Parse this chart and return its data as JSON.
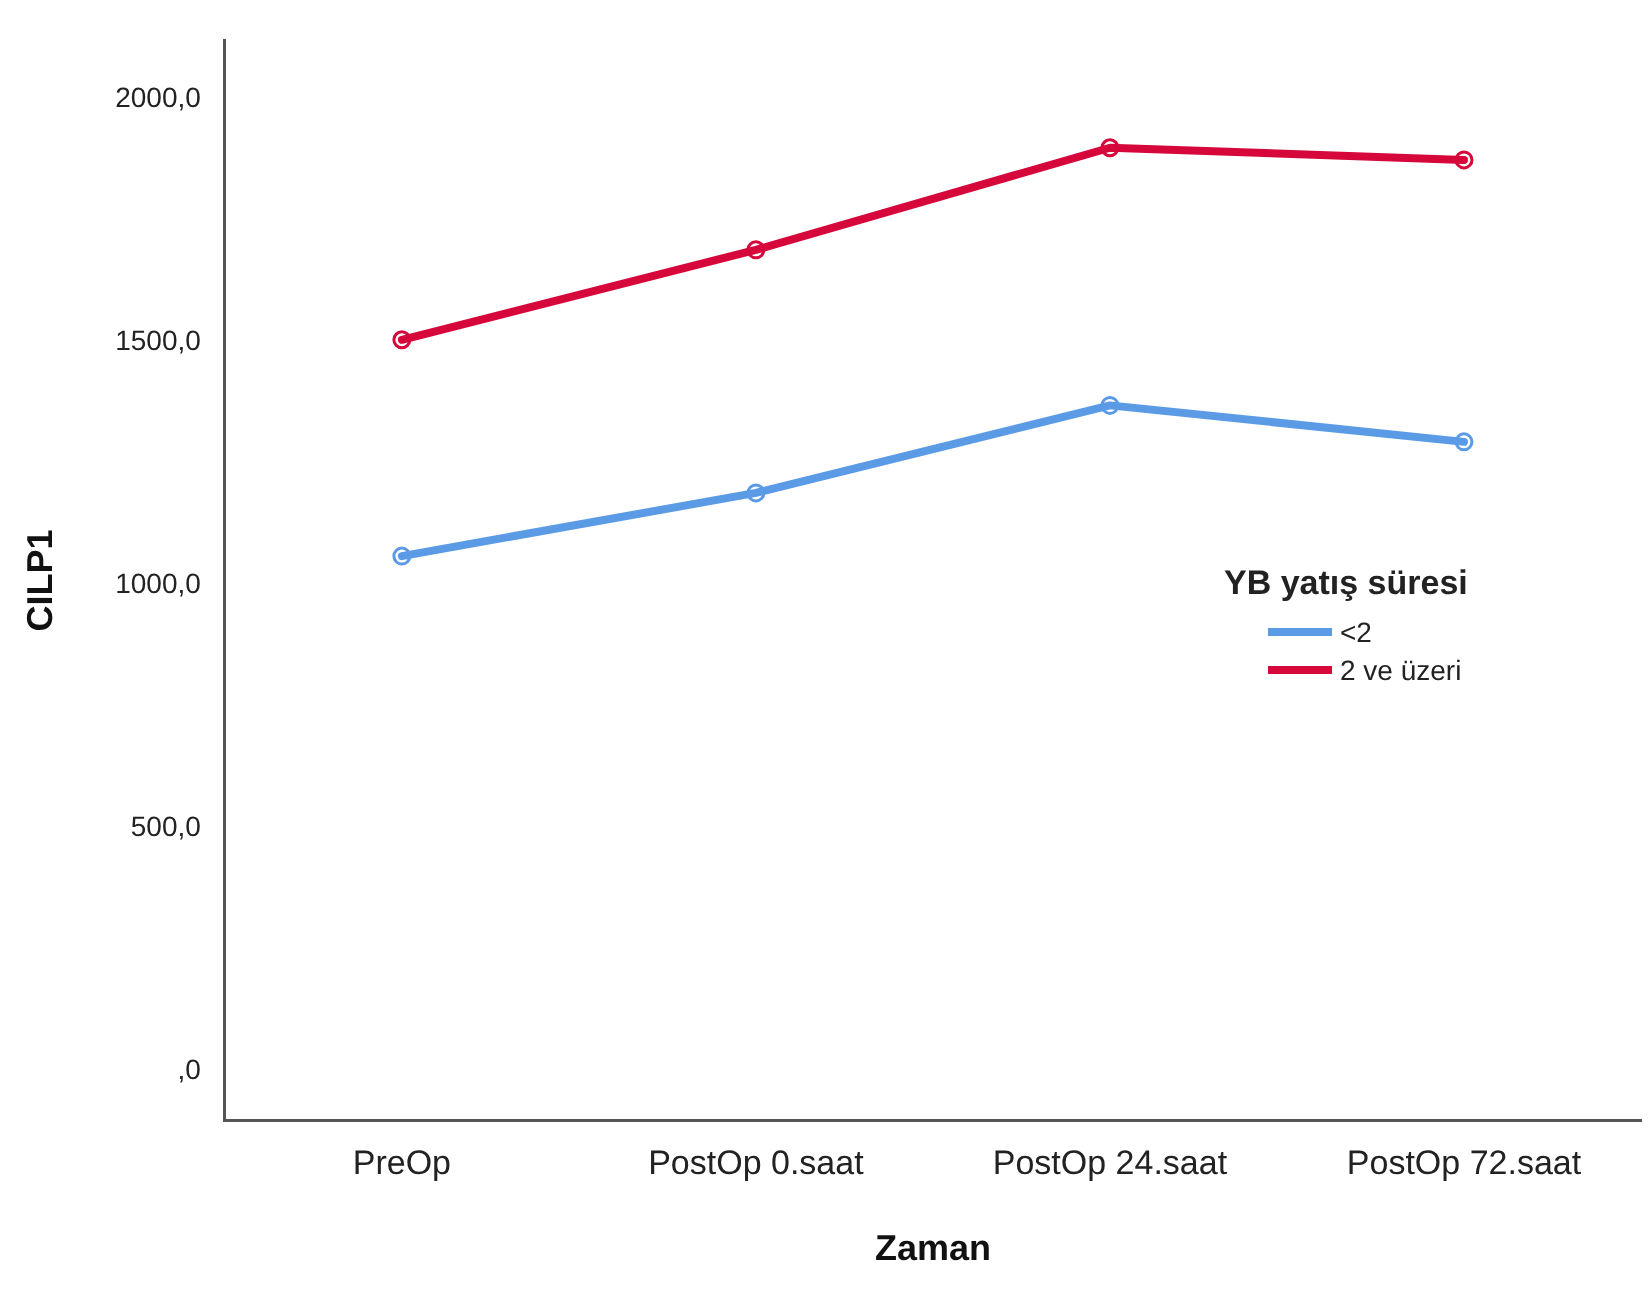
{
  "chart_data": {
    "type": "line",
    "xlabel": "Zaman",
    "ylabel": "CILP1",
    "legend_title": "YB yatış süresi",
    "categories": [
      "PreOp",
      "PostOp 0.saat",
      "PostOp 24.saat",
      "PostOp 72.saat"
    ],
    "series": [
      {
        "name": "<2",
        "color": "#5b9be6",
        "values": [
          1060,
          1190,
          1370,
          1295
        ]
      },
      {
        "name": "2 ve üzeri",
        "color": "#d6083b",
        "values": [
          1505,
          1690,
          1900,
          1875
        ]
      }
    ],
    "ylim": [
      -100,
      2120
    ],
    "yticks": [
      {
        "value": 0,
        "label": ",0"
      },
      {
        "value": 500,
        "label": "500,0"
      },
      {
        "value": 1000,
        "label": "1000,0"
      },
      {
        "value": 1500,
        "label": "1500,0"
      },
      {
        "value": 2000,
        "label": "2000,0"
      }
    ],
    "marker": "circle",
    "line_style": "solid",
    "grid": false,
    "legend": "right"
  }
}
